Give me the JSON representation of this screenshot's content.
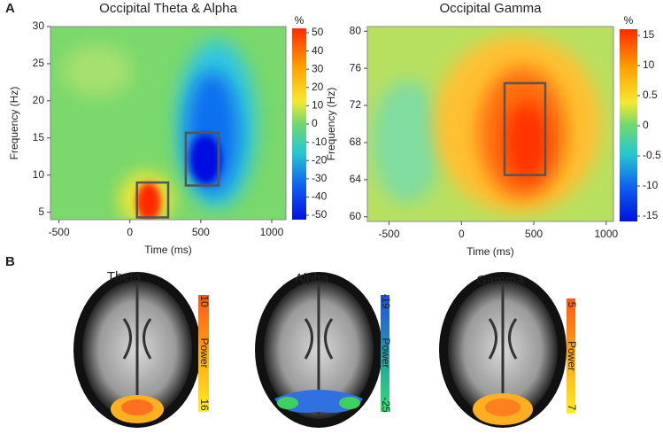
{
  "panel_labels": [
    "A",
    "B"
  ],
  "chart_data": [
    {
      "type": "heatmap",
      "title": "Occipital Theta & Alpha",
      "x_label": "Time (ms)",
      "y_label": "Frequency (Hz)",
      "xlim": [
        -560,
        1100
      ],
      "ylim": [
        4,
        30
      ],
      "xticks": [
        -500,
        0,
        500,
        1000
      ],
      "yticks": [
        5,
        10,
        15,
        20,
        25,
        30
      ],
      "colorbar_label": "%",
      "colorbar_ticks": [
        50,
        40,
        30,
        20,
        10,
        0,
        -10,
        -20,
        -30,
        -40,
        -50
      ],
      "colors": [
        "#ff2a00",
        "#ffa000",
        "#f5e830",
        "#70d870",
        "#25c8d0",
        "#1060f0",
        "#0010e0"
      ],
      "regions": [
        {
          "x": [
            50,
            270
          ],
          "y": [
            4.3,
            9
          ]
        },
        {
          "x": [
            394,
            625
          ],
          "y": [
            8.6,
            15.7
          ]
        }
      ]
    },
    {
      "type": "heatmap",
      "title": "Occipital Gamma",
      "x_label": "Time (ms)",
      "y_label": "Frequency (Hz)",
      "xlim": [
        -650,
        1050
      ],
      "ylim": [
        59.5,
        80.5
      ],
      "xticks": [
        -500,
        0,
        500,
        1000
      ],
      "yticks": [
        60,
        64,
        68,
        72,
        76,
        80
      ],
      "colorbar_label": "%",
      "colorbar_ticks": [
        15,
        10,
        0.5,
        0,
        -0.5,
        -10,
        -15
      ],
      "colors": [
        "#ff2a00",
        "#ffa000",
        "#f5e830",
        "#70d870",
        "#25c8d0",
        "#1060f0",
        "#0010e0"
      ],
      "regions": [
        {
          "x": [
            298,
            579
          ],
          "y": [
            64.5,
            74.4
          ]
        }
      ]
    }
  ],
  "brain_maps": [
    {
      "title": "Theta",
      "colorbar_label": "Power",
      "colorbar_ticks": [
        10,
        16
      ]
    },
    {
      "title": "Alpha",
      "colorbar_label": "Power",
      "colorbar_ticks": [
        -19,
        -25
      ]
    },
    {
      "title": "Gamma",
      "colorbar_label": "Power",
      "colorbar_ticks": [
        5,
        7
      ]
    }
  ]
}
